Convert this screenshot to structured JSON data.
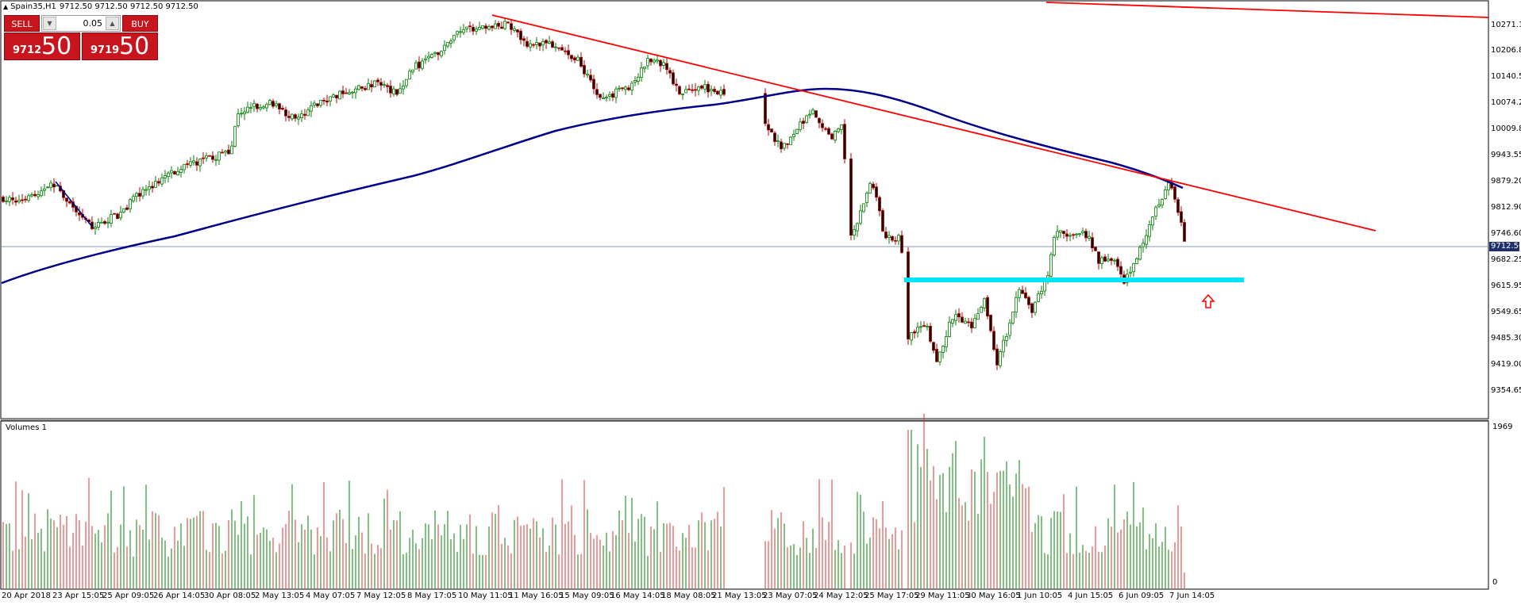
{
  "header": {
    "symbol": "Spain35,H1",
    "quote": "9712.50 9712.50 9712.50 9712.50"
  },
  "trade_panel": {
    "sell_label": "SELL",
    "buy_label": "BUY",
    "lot_value": "0.05",
    "sell_price_small": "9712",
    "sell_price_big": "50",
    "buy_price_small": "9719",
    "buy_price_big": "50"
  },
  "price_axis": {
    "labels": [
      "10271.15",
      "10206.80",
      "10140.50",
      "10074.20",
      "10009.85",
      "9943.55",
      "9879.20",
      "9812.90",
      "9746.60",
      "9682.25",
      "9615.95",
      "9549.65",
      "9485.30",
      "9419.00",
      "9354.65"
    ],
    "current_price": "9712.50"
  },
  "volume_pane": {
    "title": "Volumes 1",
    "max_label": "1969",
    "min_label": "0"
  },
  "time_axis": {
    "labels": [
      "20 Apr 2018",
      "23 Apr 15:05",
      "25 Apr 09:05",
      "26 Apr 14:05",
      "30 Apr 08:05",
      "2 May 13:05",
      "4 May 07:05",
      "7 May 12:05",
      "8 May 17:05",
      "10 May 11:05",
      "11 May 16:05",
      "15 May 09:05",
      "16 May 14:05",
      "18 May 08:05",
      "21 May 13:05",
      "23 May 07:05",
      "24 May 12:05",
      "25 May 17:05",
      "29 May 11:05",
      "30 May 16:05",
      "1 Jun 10:05",
      "4 Jun 15:05",
      "6 Jun 09:05",
      "7 Jun 14:05"
    ]
  },
  "colors": {
    "bull_candle": "#008000",
    "bear_candle": "#b40000",
    "trendline": "#ff0000",
    "moving_average": "#00008b",
    "support_zone": "#00e5ff",
    "arrow": "#ff0000",
    "current_price_line": "#8a9ab8"
  },
  "icons": {
    "collapse": "triangle-up-icon",
    "arrow_marker": "arrow-up-icon"
  }
}
